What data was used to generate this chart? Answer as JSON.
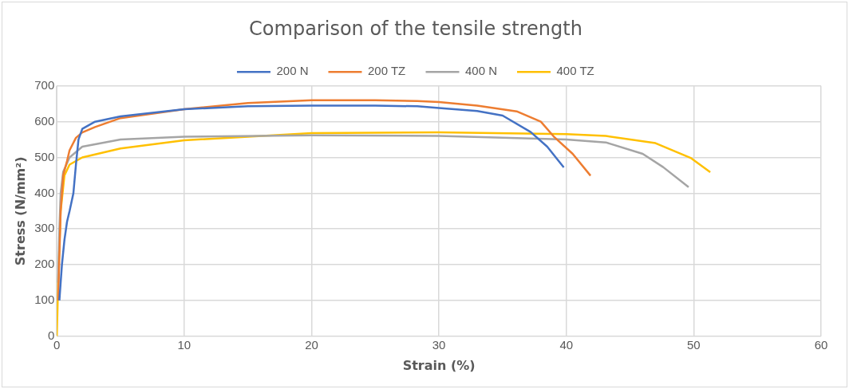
{
  "chart_data": {
    "type": "line",
    "title": "Comparison of the tensile strength",
    "xlabel": "Strain (%)",
    "ylabel": "Stress (N/mm²)",
    "xlim": [
      0,
      60
    ],
    "xticks": [
      0,
      10,
      20,
      30,
      40,
      50,
      60
    ],
    "ylim": [
      0,
      700
    ],
    "yticks": [
      0,
      100,
      200,
      300,
      400,
      500,
      600,
      700
    ],
    "grid": true,
    "legend": "top",
    "marker": "none",
    "line_style": "solid",
    "series": [
      {
        "name": "200 N",
        "color": "#4472c4",
        "x": [
          0.2,
          0.4,
          0.6,
          0.8,
          1.0,
          1.3,
          1.5,
          1.7,
          2,
          3,
          5,
          10,
          15,
          20,
          25,
          28.3,
          30,
          33,
          35,
          37.2,
          38.5,
          39.8
        ],
        "values": [
          100,
          200,
          270,
          320,
          350,
          400,
          480,
          550,
          580,
          600,
          615,
          635,
          643,
          645,
          645,
          643,
          638,
          630,
          617,
          571,
          530,
          472
        ]
      },
      {
        "name": "200 TZ",
        "color": "#ed7d31",
        "x": [
          0.1,
          0.3,
          0.5,
          0.8,
          1.0,
          1.5,
          2,
          3,
          5,
          10,
          15,
          20,
          25,
          28.3,
          30,
          33,
          36.1,
          38,
          39,
          40.5,
          41.9
        ],
        "values": [
          100,
          350,
          450,
          490,
          520,
          555,
          570,
          585,
          610,
          635,
          652,
          660,
          660,
          658,
          655,
          645,
          629,
          600,
          559,
          510,
          449
        ]
      },
      {
        "name": "400 N",
        "color": "#a5a5a5",
        "x": [
          0.1,
          0.2,
          0.3,
          0.5,
          1,
          2,
          5,
          10,
          20,
          30,
          40,
          43.1,
          46,
          47.6,
          49.6
        ],
        "values": [
          150,
          300,
          400,
          460,
          500,
          530,
          550,
          558,
          562,
          560,
          550,
          542,
          510,
          473,
          417
        ]
      },
      {
        "name": "400 TZ",
        "color": "#ffc000",
        "x": [
          0,
          0.1,
          0.3,
          0.6,
          1,
          2,
          5,
          10,
          20,
          30,
          40,
          43.1,
          47,
          49.8,
          51.3
        ],
        "values": [
          0,
          150,
          350,
          450,
          480,
          500,
          525,
          548,
          568,
          570,
          565,
          560,
          540,
          498,
          459
        ]
      }
    ]
  }
}
